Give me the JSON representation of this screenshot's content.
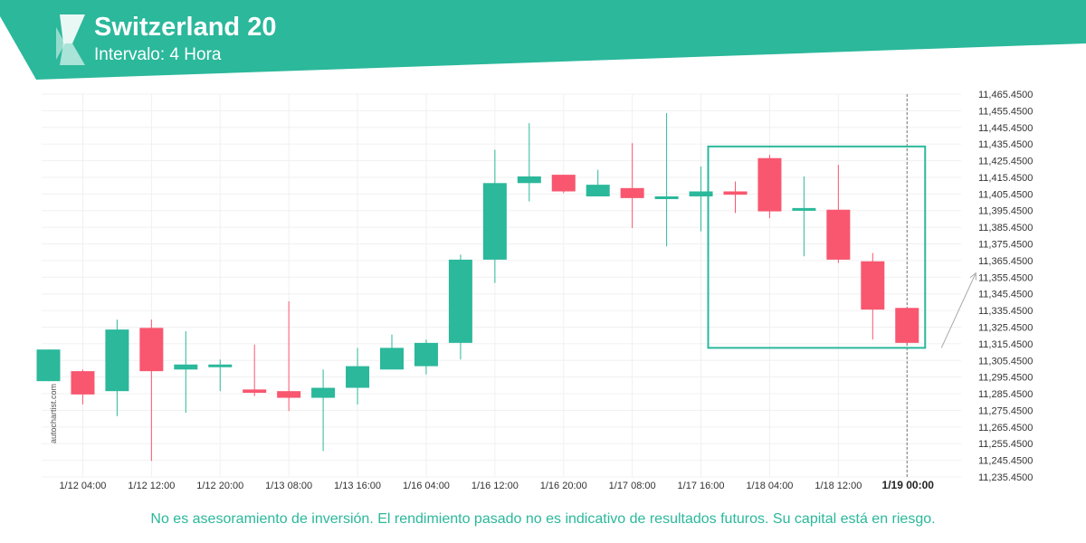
{
  "header": {
    "title": "Switzerland 20",
    "subtitle": "Intervalo: 4 Hora",
    "accent_color": "#2bb89b",
    "logo_icon": "autochartist-logo-icon"
  },
  "footer": {
    "disclaimer": "No es asesoramiento de inversión. El rendimiento pasado no es indicativo de resultados futuros. Su capital está en riesgo."
  },
  "watermark": "autochartist.com",
  "chart_data": {
    "type": "candlestick",
    "title": "Switzerland 20",
    "subtitle": "Intervalo: 4 Hora",
    "colors": {
      "up": "#2bb89b",
      "down": "#f8576f",
      "pattern_box": "#2bb89b",
      "forecast_line": "#aaaaaa",
      "current_time_line": "#777777"
    },
    "grid": true,
    "y_axis": {
      "position": "right",
      "ylim": [
        11235.45,
        11465.45
      ],
      "ticks": [
        "11,465.4500",
        "11,455.4500",
        "11,445.4500",
        "11,435.4500",
        "11,425.4500",
        "11,415.4500",
        "11,405.4500",
        "11,395.4500",
        "11,385.4500",
        "11,375.4500",
        "11,365.4500",
        "11,355.4500",
        "11,345.4500",
        "11,335.4500",
        "11,325.4500",
        "11,315.4500",
        "11,305.4500",
        "11,295.4500",
        "11,285.4500",
        "11,275.4500",
        "11,265.4500",
        "11,255.4500",
        "11,245.4500",
        "11,235.4500"
      ]
    },
    "x_axis": {
      "ticks": [
        {
          "label": "1/12 04:00",
          "index": 1
        },
        {
          "label": "1/12 12:00",
          "index": 3
        },
        {
          "label": "1/12 20:00",
          "index": 5
        },
        {
          "label": "1/13 08:00",
          "index": 7
        },
        {
          "label": "1/13 16:00",
          "index": 9
        },
        {
          "label": "1/16 04:00",
          "index": 11
        },
        {
          "label": "1/16 12:00",
          "index": 13
        },
        {
          "label": "1/16 20:00",
          "index": 15
        },
        {
          "label": "1/17 08:00",
          "index": 17
        },
        {
          "label": "1/17 16:00",
          "index": 19
        },
        {
          "label": "1/18 04:00",
          "index": 21
        },
        {
          "label": "1/18 12:00",
          "index": 23
        },
        {
          "label": "1/19 00:00",
          "index": 25,
          "bold": true
        }
      ]
    },
    "candles": [
      {
        "o": 11293,
        "h": 11312,
        "l": 11293,
        "c": 11312
      },
      {
        "o": 11299,
        "h": 11300,
        "l": 11279,
        "c": 11285
      },
      {
        "o": 11287,
        "h": 11330,
        "l": 11272,
        "c": 11324
      },
      {
        "o": 11325,
        "h": 11330,
        "l": 11245,
        "c": 11299
      },
      {
        "o": 11300,
        "h": 11323,
        "l": 11274,
        "c": 11303
      },
      {
        "o": 11302,
        "h": 11306,
        "l": 11287,
        "c": 11303
      },
      {
        "o": 11288,
        "h": 11315,
        "l": 11284,
        "c": 11286
      },
      {
        "o": 11287,
        "h": 11341,
        "l": 11275,
        "c": 11283
      },
      {
        "o": 11283,
        "h": 11300,
        "l": 11251,
        "c": 11289
      },
      {
        "o": 11289,
        "h": 11313,
        "l": 11279,
        "c": 11302
      },
      {
        "o": 11300,
        "h": 11321,
        "l": 11300,
        "c": 11313
      },
      {
        "o": 11302,
        "h": 11318,
        "l": 11297,
        "c": 11316
      },
      {
        "o": 11316,
        "h": 11369,
        "l": 11306,
        "c": 11366
      },
      {
        "o": 11366,
        "h": 11432,
        "l": 11352,
        "c": 11412
      },
      {
        "o": 11412,
        "h": 11448,
        "l": 11401,
        "c": 11416
      },
      {
        "o": 11417,
        "h": 11417,
        "l": 11406,
        "c": 11407
      },
      {
        "o": 11404,
        "h": 11420,
        "l": 11404,
        "c": 11411
      },
      {
        "o": 11409,
        "h": 11436,
        "l": 11385,
        "c": 11403
      },
      {
        "o": 11403,
        "h": 11454,
        "l": 11374,
        "c": 11404
      },
      {
        "o": 11404,
        "h": 11422,
        "l": 11383,
        "c": 11407
      },
      {
        "o": 11407,
        "h": 11413,
        "l": 11394,
        "c": 11405
      },
      {
        "o": 11427,
        "h": 11429,
        "l": 11391,
        "c": 11395
      },
      {
        "o": 11397,
        "h": 11416,
        "l": 11368,
        "c": 11397
      },
      {
        "o": 11396,
        "h": 11423,
        "l": 11364,
        "c": 11366
      },
      {
        "o": 11365,
        "h": 11370,
        "l": 11318,
        "c": 11336
      },
      {
        "o": 11337,
        "h": 11337,
        "l": 11315,
        "c": 11316
      }
    ],
    "pattern": {
      "start_index": 20,
      "end_index": 25,
      "price_top": 11434,
      "price_bottom": 11313
    },
    "forecast": {
      "from_price": 11313,
      "to_price": 11358
    },
    "current_time_index": 25
  }
}
